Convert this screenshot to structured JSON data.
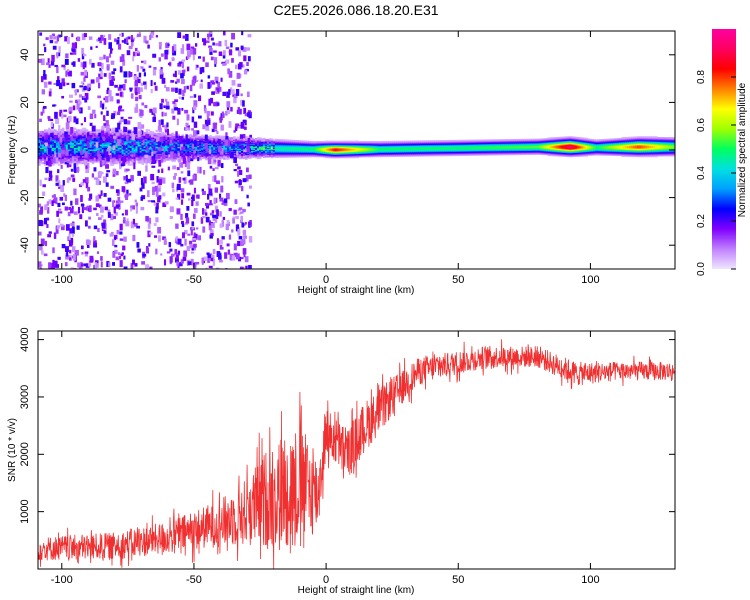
{
  "title": "C2E5.2026.086.18.20.E31",
  "chart_data": [
    {
      "type": "heatmap",
      "xlabel": "Height of straight line (km)",
      "ylabel": "Frequency (Hz)",
      "xlim": [
        -109,
        132
      ],
      "ylim": [
        -50,
        50
      ],
      "xticks": [
        -100,
        -50,
        0,
        50,
        100
      ],
      "xtick_labels": [
        "-100",
        "-50",
        "0",
        "50",
        "100"
      ],
      "yticks": [
        -40,
        -20,
        0,
        20,
        40
      ],
      "ytick_labels": [
        "-40",
        "-20",
        "0",
        "20",
        "40"
      ],
      "colorbar": {
        "label": "Normalized spectral amplitude",
        "range": [
          0,
          1
        ],
        "ticks": [
          0.0,
          0.2,
          0.4,
          0.6,
          0.8
        ],
        "tick_labels": [
          "0.0",
          "0.2",
          "0.4",
          "0.6",
          "0.8"
        ],
        "colors": [
          "#f0e6ff",
          "#c080ff",
          "#8000ff",
          "#0000ff",
          "#00a0ff",
          "#00e0e0",
          "#00ff60",
          "#a0ff00",
          "#ffff00",
          "#ff8000",
          "#ff0000",
          "#ff0060",
          "#ff00a0"
        ]
      },
      "band": [
        {
          "x": -105,
          "center": 1.5,
          "halfwidth": 6,
          "amp": 0.35
        },
        {
          "x": -75,
          "center": 1.5,
          "halfwidth": 6,
          "amp": 0.35
        },
        {
          "x": -50,
          "center": 1.2,
          "halfwidth": 4.5,
          "amp": 0.3
        },
        {
          "x": -35,
          "center": 1.0,
          "halfwidth": 4,
          "amp": 0.3
        },
        {
          "x": -20,
          "center": 0.8,
          "halfwidth": 3,
          "amp": 0.45
        },
        {
          "x": -5,
          "center": 0.5,
          "halfwidth": 2.5,
          "amp": 0.5
        },
        {
          "x": 3,
          "center": 0.3,
          "halfwidth": 2.5,
          "amp": 0.85
        },
        {
          "x": 20,
          "center": 0.5,
          "halfwidth": 2.5,
          "amp": 0.5
        },
        {
          "x": 50,
          "center": 1.0,
          "halfwidth": 2.5,
          "amp": 0.5
        },
        {
          "x": 80,
          "center": 1.5,
          "halfwidth": 2.5,
          "amp": 0.55
        },
        {
          "x": 92,
          "center": 1.5,
          "halfwidth": 3.0,
          "amp": 0.95
        },
        {
          "x": 102,
          "center": 1.2,
          "halfwidth": 2.5,
          "amp": 0.5
        },
        {
          "x": 118,
          "center": 1.5,
          "halfwidth": 3.0,
          "amp": 0.8
        },
        {
          "x": 132,
          "center": 1.5,
          "halfwidth": 3.0,
          "amp": 0.55
        }
      ]
    },
    {
      "type": "line",
      "xlabel": "Height of straight line (km)",
      "ylabel": "SNR (10 * v/v)",
      "xlim": [
        -109,
        132
      ],
      "ylim": [
        0,
        4150
      ],
      "xticks": [
        -100,
        -50,
        0,
        50,
        100
      ],
      "xtick_labels": [
        "-100",
        "-50",
        "0",
        "50",
        "100"
      ],
      "yticks": [
        1000,
        2000,
        3000,
        4000
      ],
      "ytick_labels": [
        "1000",
        "2000",
        "3000",
        "4000"
      ],
      "color": "#f03030",
      "envelope": [
        {
          "x": -109,
          "mean": 350,
          "noise": 280
        },
        {
          "x": -80,
          "mean": 400,
          "noise": 320
        },
        {
          "x": -60,
          "mean": 550,
          "noise": 380
        },
        {
          "x": -40,
          "mean": 800,
          "noise": 550
        },
        {
          "x": -30,
          "mean": 1000,
          "noise": 800
        },
        {
          "x": -20,
          "mean": 1300,
          "noise": 1300
        },
        {
          "x": -10,
          "mean": 1500,
          "noise": 1400
        },
        {
          "x": -3,
          "mean": 1300,
          "noise": 900
        },
        {
          "x": 0,
          "mean": 2400,
          "noise": 550
        },
        {
          "x": 8,
          "mean": 2000,
          "noise": 600
        },
        {
          "x": 15,
          "mean": 2500,
          "noise": 600
        },
        {
          "x": 25,
          "mean": 3000,
          "noise": 450
        },
        {
          "x": 35,
          "mean": 3450,
          "noise": 320
        },
        {
          "x": 60,
          "mean": 3700,
          "noise": 260
        },
        {
          "x": 80,
          "mean": 3700,
          "noise": 250
        },
        {
          "x": 95,
          "mean": 3400,
          "noise": 280
        },
        {
          "x": 110,
          "mean": 3450,
          "noise": 220
        },
        {
          "x": 132,
          "mean": 3450,
          "noise": 220
        }
      ]
    }
  ]
}
